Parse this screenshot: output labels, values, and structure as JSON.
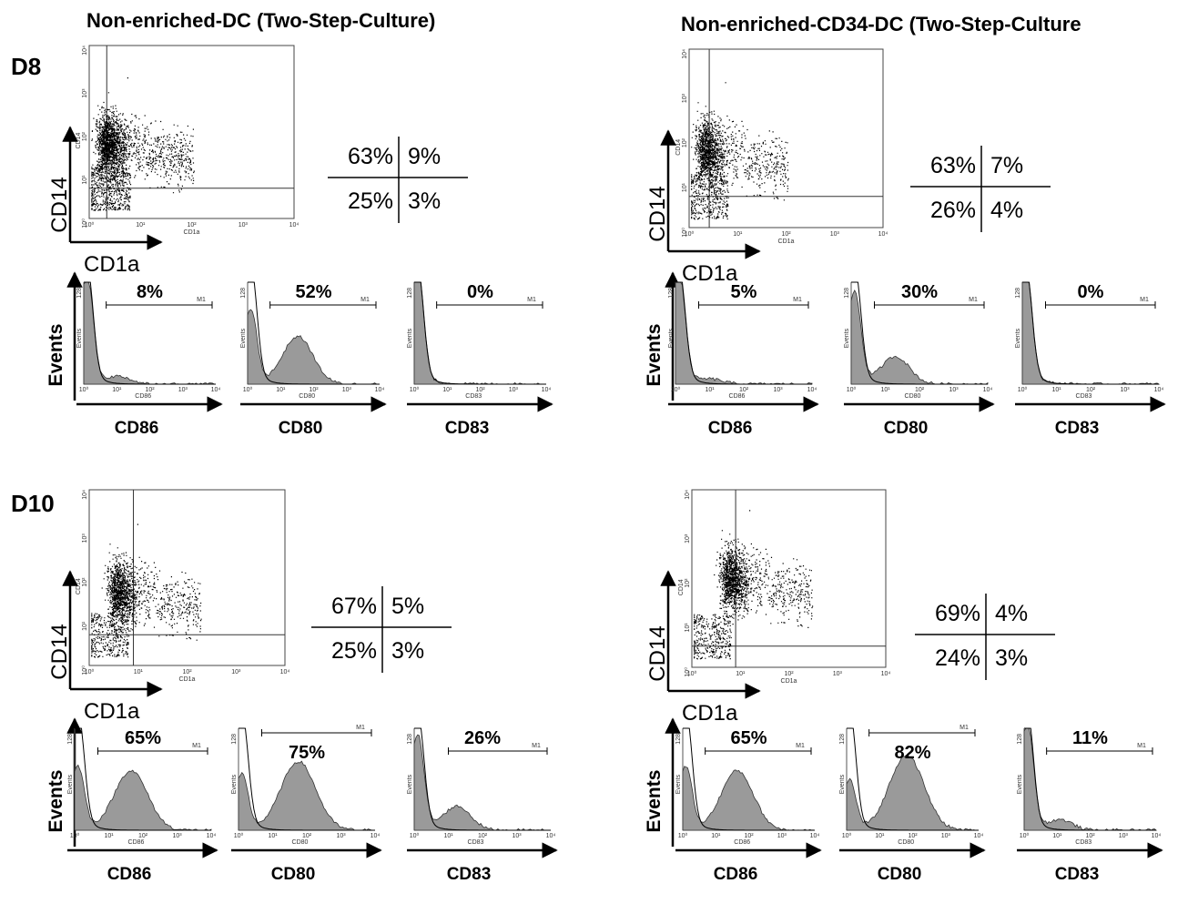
{
  "columns": [
    {
      "title": "Non-enriched-DC (Two-Step-Culture)"
    },
    {
      "title": "Non-enriched-CD34-DC (Two-Step-Culture"
    }
  ],
  "days": [
    "D8",
    "D10"
  ],
  "axis": {
    "y_big": "CD14",
    "x_big": "CD1a",
    "y_small": "CD14",
    "x_small": "CD1a",
    "events_label": "Events",
    "events_small": "Events",
    "gate": "M1",
    "y_top": "128",
    "decade_ticks": [
      "10⁰",
      "10¹",
      "10²",
      "10³",
      "10⁴"
    ]
  },
  "chart_data": [
    {
      "type": "scatter",
      "column": 0,
      "day": "D8",
      "xlabel": "CD1a",
      "ylabel": "CD14",
      "scale": "log",
      "xlim": [
        1,
        10000
      ],
      "ylim": [
        1,
        10000
      ],
      "quadrants": {
        "upper_left": "63%",
        "upper_right": "9%",
        "lower_left": "25%",
        "lower_right": "3%"
      },
      "histograms": [
        {
          "marker": "CD86",
          "pct": "8%",
          "xlabel": "CD86"
        },
        {
          "marker": "CD80",
          "pct": "52%",
          "xlabel": "CD80"
        },
        {
          "marker": "CD83",
          "pct": "0%",
          "xlabel": "CD83"
        }
      ]
    },
    {
      "type": "scatter",
      "column": 1,
      "day": "D8",
      "xlabel": "CD1a",
      "ylabel": "CD14",
      "scale": "log",
      "xlim": [
        1,
        10000
      ],
      "ylim": [
        1,
        10000
      ],
      "quadrants": {
        "upper_left": "63%",
        "upper_right": "7%",
        "lower_left": "26%",
        "lower_right": "4%"
      },
      "histograms": [
        {
          "marker": "CD86",
          "pct": "5%",
          "xlabel": "CD86"
        },
        {
          "marker": "CD80",
          "pct": "30%",
          "xlabel": "CD80"
        },
        {
          "marker": "CD83",
          "pct": "0%",
          "xlabel": "CD83"
        }
      ]
    },
    {
      "type": "scatter",
      "column": 0,
      "day": "D10",
      "xlabel": "CD1a",
      "ylabel": "CD14",
      "scale": "log",
      "xlim": [
        1,
        10000
      ],
      "ylim": [
        1,
        10000
      ],
      "quadrants": {
        "upper_left": "67%",
        "upper_right": "5%",
        "lower_left": "25%",
        "lower_right": "3%"
      },
      "histograms": [
        {
          "marker": "CD86",
          "pct": "65%",
          "xlabel": "CD86"
        },
        {
          "marker": "CD80",
          "pct": "75%",
          "xlabel": "CD80"
        },
        {
          "marker": "CD83",
          "pct": "26%",
          "xlabel": "CD83"
        }
      ]
    },
    {
      "type": "scatter",
      "column": 1,
      "day": "D10",
      "xlabel": "CD1a",
      "ylabel": "CD14",
      "scale": "log",
      "xlim": [
        1,
        10000
      ],
      "ylim": [
        1,
        10000
      ],
      "quadrants": {
        "upper_left": "69%",
        "upper_right": "4%",
        "lower_left": "24%",
        "lower_right": "3%"
      },
      "histograms": [
        {
          "marker": "CD86",
          "pct": "65%",
          "xlabel": "CD86"
        },
        {
          "marker": "CD80",
          "pct": "82%",
          "xlabel": "CD80"
        },
        {
          "marker": "CD83",
          "pct": "11%",
          "xlabel": "CD83"
        }
      ]
    }
  ]
}
